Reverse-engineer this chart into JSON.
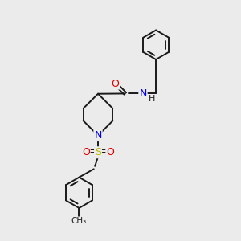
{
  "bg_color": "#ebebeb",
  "atom_colors": {
    "C": "#1a1a1a",
    "N": "#0000ee",
    "O": "#dd0000",
    "S": "#bbbb00",
    "H": "#1a1a1a"
  },
  "bond_color": "#1a1a1a",
  "bond_width": 1.4,
  "figsize": [
    3.0,
    3.0
  ],
  "dpi": 100
}
